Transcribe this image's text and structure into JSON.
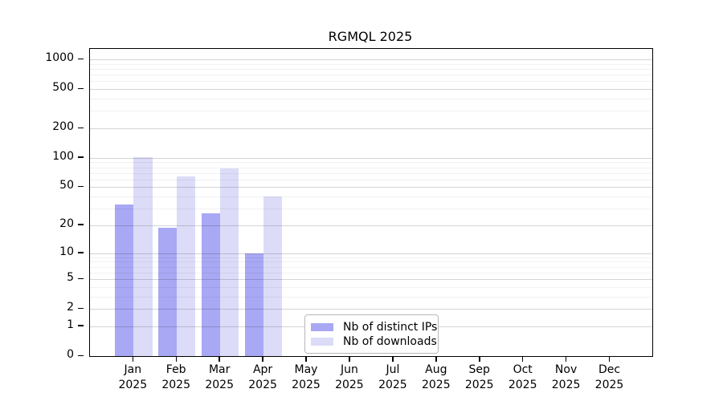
{
  "title": "RGMQL 2025",
  "chart_data": {
    "type": "bar",
    "title": "RGMQL 2025",
    "categories": [
      "Jan",
      "Feb",
      "Mar",
      "Apr",
      "May",
      "Jun",
      "Jul",
      "Aug",
      "Sep",
      "Oct",
      "Nov",
      "Dec"
    ],
    "category_year": "2025",
    "series": [
      {
        "name": "Nb of distinct IPs",
        "color": "#a8a8f4",
        "values": [
          33,
          19,
          27,
          10,
          null,
          null,
          null,
          null,
          null,
          null,
          null,
          null
        ]
      },
      {
        "name": "Nb of downloads",
        "color": "#dcdcf8",
        "values": [
          101,
          64,
          78,
          40,
          null,
          null,
          null,
          null,
          null,
          null,
          null,
          null
        ]
      }
    ],
    "y_axis": {
      "scale": "log10(value+1)",
      "ticks": [
        0,
        1,
        2,
        5,
        10,
        20,
        50,
        100,
        200,
        500,
        1000
      ],
      "range_top": 1000,
      "grid": "on"
    },
    "minor_gridlines": [
      3,
      4,
      6,
      7,
      8,
      9,
      30,
      40,
      60,
      70,
      80,
      90,
      300,
      400,
      600,
      700,
      800,
      900
    ],
    "legend_position": "bottom-center",
    "xlabel": "",
    "ylabel": ""
  }
}
